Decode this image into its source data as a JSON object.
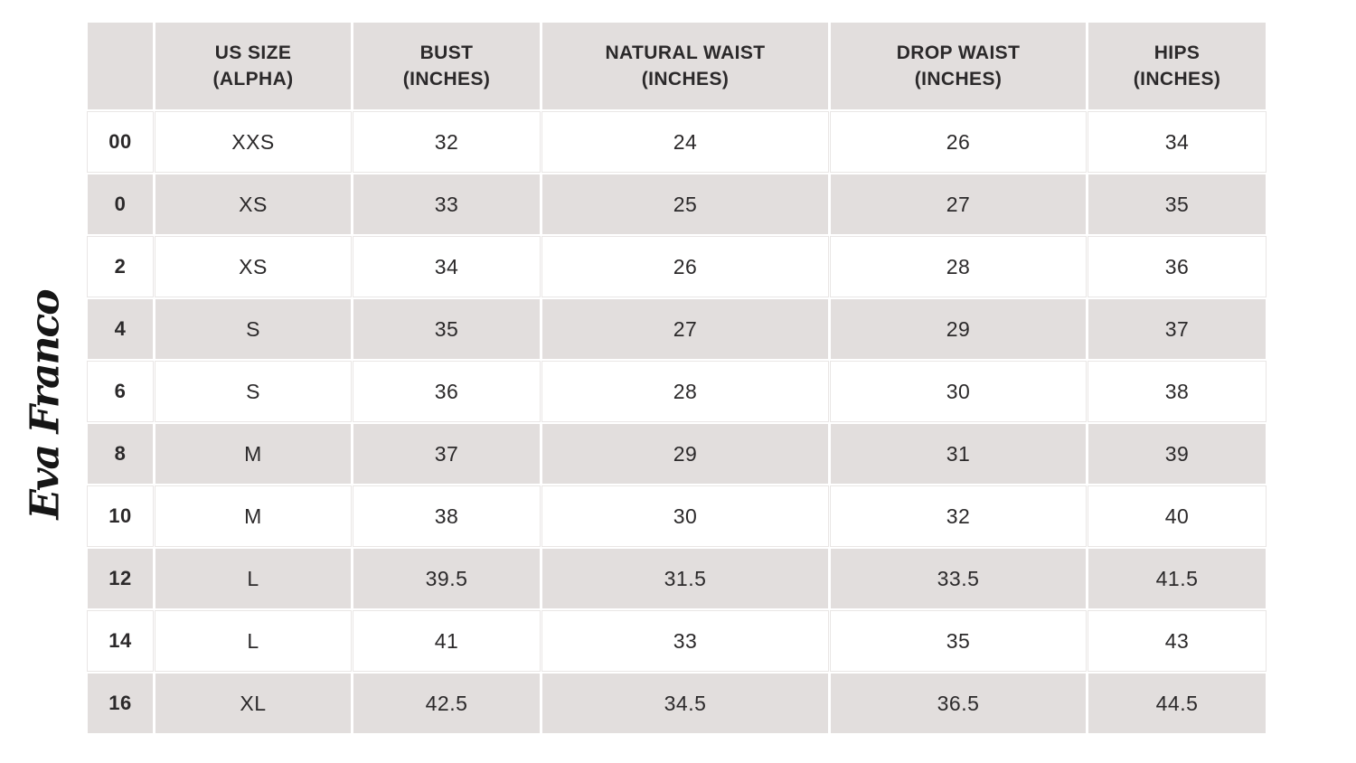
{
  "brand": {
    "logo_text": "Eva Franco"
  },
  "chart_data": {
    "type": "table",
    "brand": "Eva Franco",
    "columns": [
      {
        "label": "",
        "sublabel": ""
      },
      {
        "label": "US SIZE",
        "sublabel": "(ALPHA)"
      },
      {
        "label": "BUST",
        "sublabel": "(INCHES)"
      },
      {
        "label": "NATURAL WAIST",
        "sublabel": "(INCHES)"
      },
      {
        "label": "DROP WAIST",
        "sublabel": "(INCHES)"
      },
      {
        "label": "HIPS",
        "sublabel": "(INCHES)"
      }
    ],
    "rows": [
      {
        "us_size": "00",
        "alpha_size": "XXS",
        "bust": "32",
        "natural_waist": "24",
        "drop_waist": "26",
        "hips": "34"
      },
      {
        "us_size": "0",
        "alpha_size": "XS",
        "bust": "33",
        "natural_waist": "25",
        "drop_waist": "27",
        "hips": "35"
      },
      {
        "us_size": "2",
        "alpha_size": "XS",
        "bust": "34",
        "natural_waist": "26",
        "drop_waist": "28",
        "hips": "36"
      },
      {
        "us_size": "4",
        "alpha_size": "S",
        "bust": "35",
        "natural_waist": "27",
        "drop_waist": "29",
        "hips": "37"
      },
      {
        "us_size": "6",
        "alpha_size": "S",
        "bust": "36",
        "natural_waist": "28",
        "drop_waist": "30",
        "hips": "38"
      },
      {
        "us_size": "8",
        "alpha_size": "M",
        "bust": "37",
        "natural_waist": "29",
        "drop_waist": "31",
        "hips": "39"
      },
      {
        "us_size": "10",
        "alpha_size": "M",
        "bust": "38",
        "natural_waist": "30",
        "drop_waist": "32",
        "hips": "40"
      },
      {
        "us_size": "12",
        "alpha_size": "L",
        "bust": "39.5",
        "natural_waist": "31.5",
        "drop_waist": "33.5",
        "hips": "41.5"
      },
      {
        "us_size": "14",
        "alpha_size": "L",
        "bust": "41",
        "natural_waist": "33",
        "drop_waist": "35",
        "hips": "43"
      },
      {
        "us_size": "16",
        "alpha_size": "XL",
        "bust": "42.5",
        "natural_waist": "34.5",
        "drop_waist": "36.5",
        "hips": "44.5"
      }
    ]
  },
  "colors": {
    "background": "#ffffff",
    "row_shade": "#e2dedd",
    "text": "#2b292a",
    "cell_outline": "#e9e6e5",
    "logo_ink": "#161616"
  }
}
